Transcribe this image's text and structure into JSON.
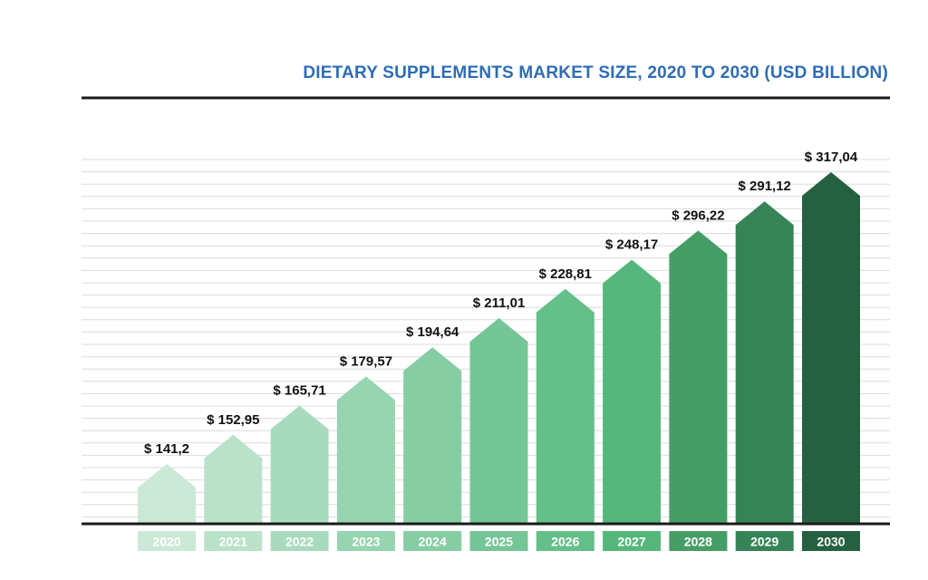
{
  "chart_data": {
    "type": "bar",
    "title": "DIETARY SUPPLEMENTS MARKET SIZE, 2020 TO 2030 (USD BILLION)",
    "xlabel": "",
    "ylabel": "",
    "categories": [
      "2020",
      "2021",
      "2022",
      "2023",
      "2024",
      "2025",
      "2026",
      "2027",
      "2028",
      "2029",
      "2030"
    ],
    "values": [
      141.2,
      152.95,
      165.71,
      179.57,
      194.64,
      211.01,
      228.81,
      248.17,
      296.22,
      291.12,
      317.04
    ],
    "value_labels": [
      "$ 141,2",
      "$ 152,95",
      "$ 165,71",
      "$ 179,57",
      "$ 194,64",
      "$ 211,01",
      "$ 228,81",
      "$ 248,17",
      "$ 296,22",
      "$ 291,12",
      "$ 317,04"
    ],
    "grid": true,
    "legend": "none",
    "colors": {
      "title": "#2f6db3",
      "axis": "#1a1a1a",
      "grid": "#dcdcdc",
      "value_label": "#111111",
      "category_text": "#ffffff",
      "bars": [
        "#cbe9d6",
        "#b9e2c9",
        "#a8dbbd",
        "#97d4b0",
        "#86cda3",
        "#75c696",
        "#64bf88",
        "#55b77b",
        "#469e67",
        "#368456",
        "#256140"
      ]
    }
  }
}
